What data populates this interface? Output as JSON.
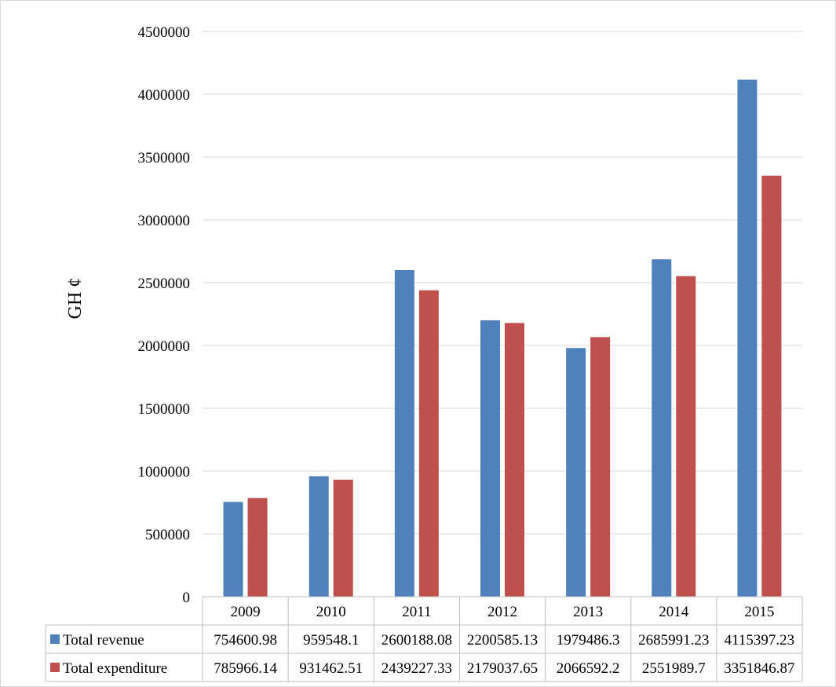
{
  "chart_data": {
    "type": "bar",
    "title": "",
    "ylabel": "GH ¢",
    "xlabel": "",
    "ylim": [
      0,
      4500000
    ],
    "yticks": [
      0,
      500000,
      1000000,
      1500000,
      2000000,
      2500000,
      3000000,
      3500000,
      4000000,
      4500000
    ],
    "ytick_labels": [
      "0",
      "500000",
      "1000000",
      "1500000",
      "2000000",
      "2500000",
      "3000000",
      "3500000",
      "4000000",
      "4500000"
    ],
    "grid": true,
    "legend": "data-table",
    "categories": [
      "2009",
      "2010",
      "2011",
      "2012",
      "2013",
      "2014",
      "2015"
    ],
    "series": [
      {
        "name": "Total revenue",
        "color": "#4f81bd",
        "values": [
          754600.98,
          959548.1,
          2600188.08,
          2200585.13,
          1979486.3,
          2685991.23,
          4115397.23
        ],
        "labels": [
          "754600.98",
          "959548.1",
          "2600188.08",
          "2200585.13",
          "1979486.3",
          "2685991.23",
          "4115397.23"
        ]
      },
      {
        "name": "Total expenditure",
        "color": "#c0504d",
        "values": [
          785966.14,
          931462.51,
          2439227.33,
          2179037.65,
          2066592.2,
          2551989.7,
          3351846.87
        ],
        "labels": [
          "785966.14",
          "931462.51",
          "2439227.33",
          "2179037.65",
          "2066592.2",
          "2551989.7",
          "3351846.87"
        ]
      }
    ]
  }
}
